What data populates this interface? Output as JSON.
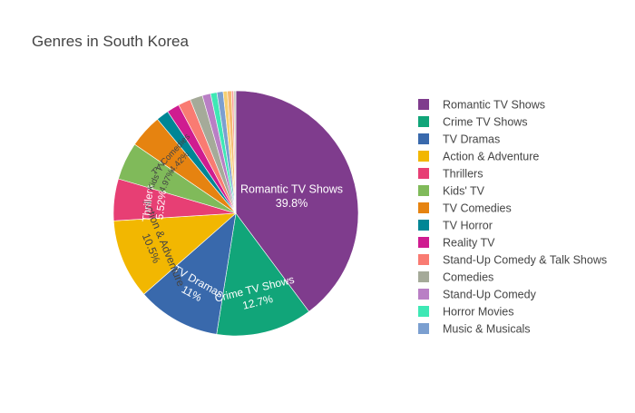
{
  "chart_data": {
    "type": "pie",
    "title": "Genres in South Korea",
    "legend_position": "right",
    "start_direction": "clockwise from top",
    "slices": [
      {
        "label": "Romantic TV Shows",
        "value": 39.8,
        "display": "39.8%",
        "color": "#7f3c8d",
        "text_color": "#ffffff",
        "shown": true
      },
      {
        "label": "Crime TV Shows",
        "value": 12.7,
        "display": "12.7%",
        "color": "#11a579",
        "text_color": "#ffffff",
        "shown": true
      },
      {
        "label": "TV Dramas",
        "value": 11.0,
        "display": "11%",
        "color": "#3969ac",
        "text_color": "#ffffff",
        "shown": true
      },
      {
        "label": "Action & Adventure",
        "value": 10.5,
        "display": "10.5%",
        "color": "#f2b701",
        "text_color": "#444444",
        "shown": true
      },
      {
        "label": "Thrillers",
        "value": 5.52,
        "display": "5.52%",
        "color": "#e73f74",
        "text_color": "#ffffff",
        "shown": true
      },
      {
        "label": "Kids' TV",
        "value": 4.97,
        "display": "4.97%",
        "color": "#80ba5a",
        "text_color": "#444444",
        "shown": true
      },
      {
        "label": "TV Comedies",
        "value": 4.42,
        "display": "4.42%",
        "color": "#e68310",
        "text_color": "#444444",
        "shown": true
      },
      {
        "label": "TV Horror",
        "value": 1.66,
        "display": "",
        "color": "#008695",
        "text_color": "#ffffff",
        "shown": false
      },
      {
        "label": "Reality TV",
        "value": 1.66,
        "display": "",
        "color": "#cf1c90",
        "text_color": "#ffffff",
        "shown": false
      },
      {
        "label": "Stand-Up Comedy & Talk Shows",
        "value": 1.66,
        "display": "",
        "color": "#f97b72",
        "text_color": "#ffffff",
        "shown": false
      },
      {
        "label": "Comedies",
        "value": 1.66,
        "display": "",
        "color": "#a5aa99",
        "text_color": "#ffffff",
        "shown": false
      },
      {
        "label": "Stand-Up Comedy",
        "value": 1.1,
        "display": "",
        "color": "#b97fc5",
        "text_color": "#ffffff",
        "shown": false
      },
      {
        "label": "Horror Movies",
        "value": 0.83,
        "display": "",
        "color": "#3ee8b5",
        "text_color": "#ffffff",
        "shown": false
      },
      {
        "label": "Music & Musicals",
        "value": 0.83,
        "display": "",
        "color": "#7b9fd0",
        "text_color": "#ffffff",
        "shown": false
      },
      {
        "label": "",
        "value": 0.55,
        "display": "",
        "color": "#f6cf71",
        "text_color": "#ffffff",
        "shown": false
      },
      {
        "label": "",
        "value": 0.55,
        "display": "",
        "color": "#f5b971",
        "text_color": "#ffffff",
        "shown": false
      },
      {
        "label": "",
        "value": 0.28,
        "display": "",
        "color": "#f89c96",
        "text_color": "#ffffff",
        "shown": false
      },
      {
        "label": "",
        "value": 0.28,
        "display": "",
        "color": "#c9cdbf",
        "text_color": "#ffffff",
        "shown": false
      }
    ]
  }
}
